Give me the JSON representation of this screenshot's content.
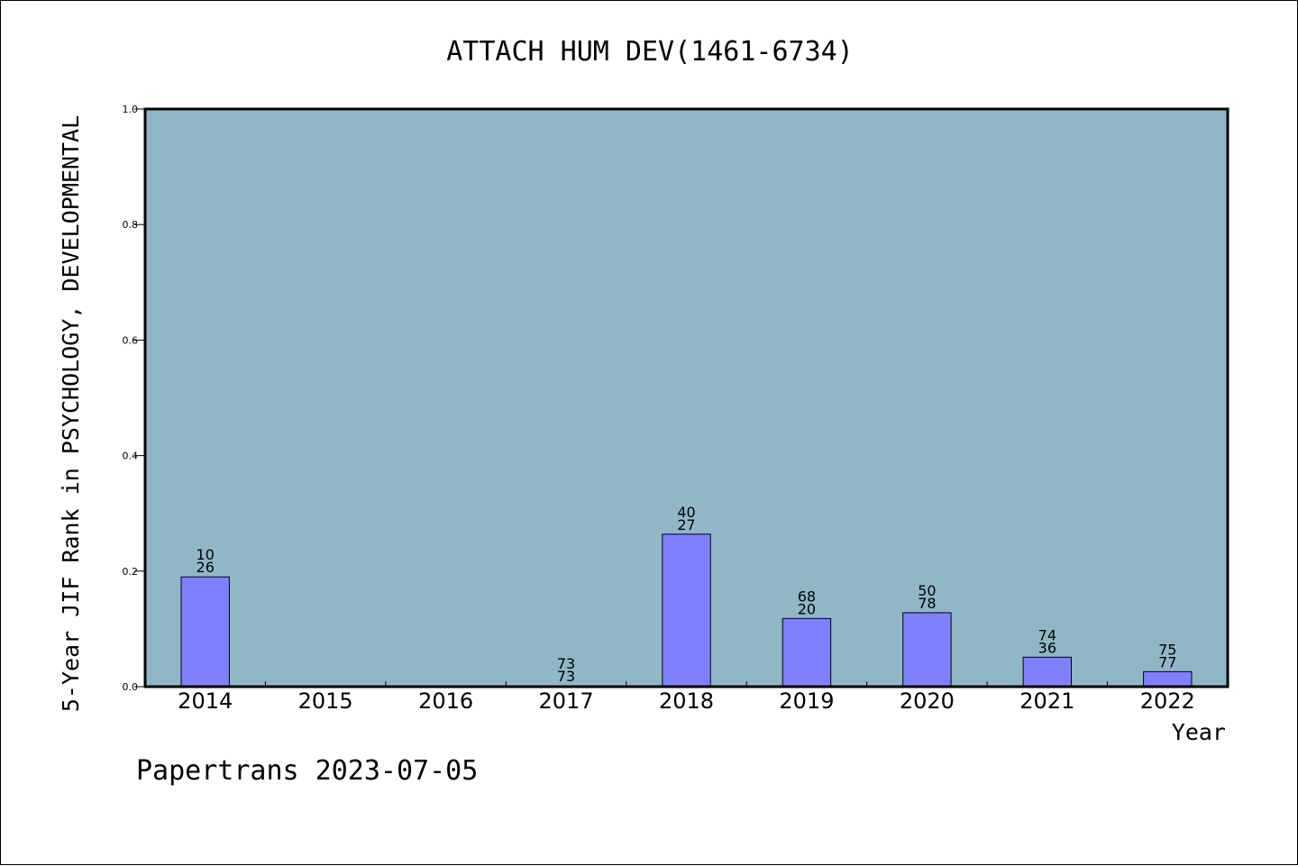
{
  "chart_data": {
    "type": "bar",
    "title": "ATTACH HUM DEV(1461-6734)",
    "xlabel": "Year",
    "ylabel": "5-Year JIF Rank in PSYCHOLOGY, DEVELOPMENTAL",
    "categories": [
      "2014",
      "2015",
      "2016",
      "2017",
      "2018",
      "2019",
      "2020",
      "2021",
      "2022"
    ],
    "values": [
      0.19,
      null,
      null,
      0.001,
      0.264,
      0.118,
      0.128,
      0.051,
      0.026
    ],
    "bar_labels": [
      [
        "10",
        "26"
      ],
      null,
      null,
      [
        "73",
        "73"
      ],
      [
        "40",
        "27"
      ],
      [
        "68",
        "20"
      ],
      [
        "50",
        "78"
      ],
      [
        "74",
        "36"
      ],
      [
        "75",
        "77"
      ]
    ],
    "ylim": [
      0,
      1.0
    ],
    "yticks": [
      "0.0",
      "0.2",
      "0.4",
      "0.6",
      "0.8",
      "1.0"
    ],
    "grid": false,
    "colors": {
      "plot_background": "#8fb7c5",
      "bar_fill": "#8080ff",
      "bar_edge": "#000000"
    }
  },
  "footer": "Papertrans 2023-07-05"
}
